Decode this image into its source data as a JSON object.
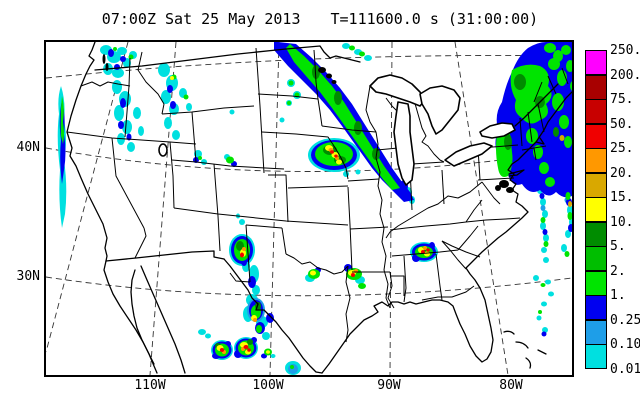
{
  "title": {
    "datetime": "07:00Z Sat 25 May 2013",
    "timestep": "T=111600.0 s (31:00:00)"
  },
  "axes": {
    "lat_labels": [
      "40N",
      "30N"
    ],
    "lon_labels": [
      "110W",
      "100W",
      "90W",
      "80W"
    ]
  },
  "colorbar": {
    "levels": [
      "250.",
      "200.",
      "75.",
      "50.",
      "25.",
      "20.",
      "15.",
      "10.",
      "5.",
      "2.",
      "1.",
      "0.25",
      "0.10",
      "0.01"
    ],
    "colors": [
      "#FF00FF",
      "#A80000",
      "#C80000",
      "#F00000",
      "#FF9800",
      "#D9A800",
      "#FFFF00",
      "#008C00",
      "#00BE00",
      "#00E400",
      "#0000F0",
      "#1E9EE8",
      "#00E0E0"
    ]
  },
  "palette": {
    "magenta": "#FF00FF",
    "dark_red": "#A80000",
    "red2": "#C80000",
    "red": "#F00000",
    "orange": "#FF9800",
    "gold": "#D9A800",
    "yellow": "#FFFF00",
    "green_dark": "#008C00",
    "green_mid": "#00BE00",
    "green": "#00E400",
    "blue": "#0000F0",
    "blue_mid": "#1E9EE8",
    "cyan": "#00E0E0",
    "land_line": "#000000",
    "background": "#ffffff"
  },
  "precipitation_summary": [
    {
      "region": "Pacific Northwest / N Rockies",
      "intensity": "light (cyan-blue patches)"
    },
    {
      "region": "California offshore coast",
      "intensity": "light narrow band"
    },
    {
      "region": "Dakotas-Minnesota-Wisconsin",
      "intensity": "long moderate band, heavy cells in Iowa/Minnesota"
    },
    {
      "region": "Oklahoma / Texas",
      "intensity": "scattered strong convective cells with heavy cores"
    },
    {
      "region": "New England / Mid-Atlantic coast",
      "intensity": "large moderate area with embedded heavy cells"
    },
    {
      "region": "Western Atlantic offshore",
      "intensity": "scattered light showers"
    }
  ]
}
